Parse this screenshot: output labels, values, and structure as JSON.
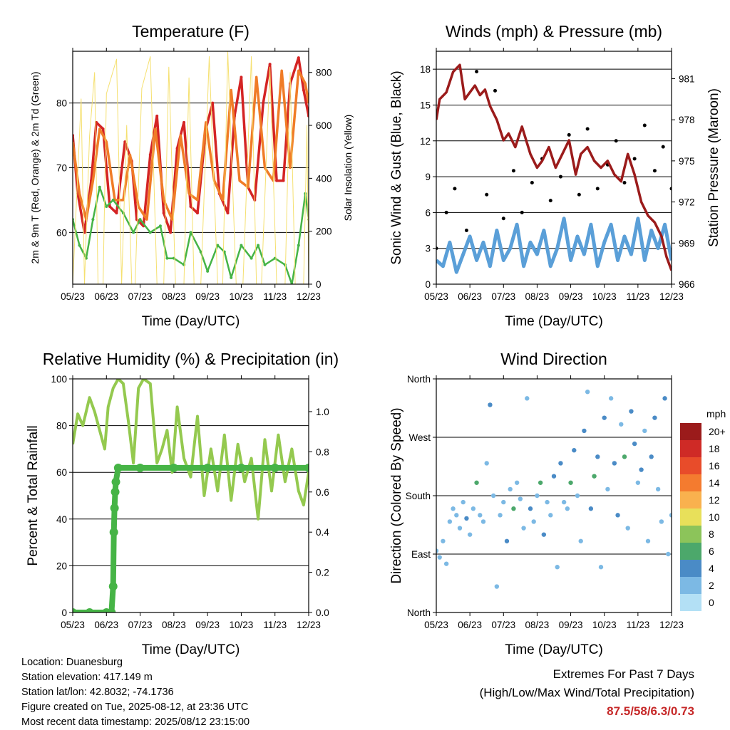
{
  "colors": {
    "temp_2m": "#d42424",
    "temp_9m": "#f07c27",
    "dewpoint": "#46b446",
    "solar": "#f5e070",
    "wind": "#5a9fd8",
    "gust": "#000000",
    "pressure": "#9b1b1b",
    "rh": "#94c94f",
    "precip": "#46b446",
    "extremes": "#c62828"
  },
  "chart_data": [
    {
      "id": "temperature",
      "type": "line",
      "title": "Temperature (F)",
      "xlabel": "Time (Day/UTC)",
      "ylabel": "2m & 9m T (Red, Orange) & 2m Td (Green)",
      "y2label": "Solar Insolation (Yellow)",
      "x_ticks": [
        "05/23",
        "06/23",
        "07/23",
        "08/23",
        "09/23",
        "10/23",
        "11/23",
        "12/23"
      ],
      "xlim": [
        0,
        7
      ],
      "ylim": [
        52,
        88
      ],
      "y_ticks": [
        60,
        70,
        80
      ],
      "y2lim": [
        0,
        880
      ],
      "y2_ticks": [
        0,
        200,
        400,
        600,
        800
      ],
      "series": [
        {
          "name": "2m T",
          "axis": "y",
          "x": [
            0,
            0.15,
            0.35,
            0.55,
            0.7,
            0.9,
            1.1,
            1.3,
            1.55,
            1.75,
            1.9,
            2.1,
            2.3,
            2.5,
            2.7,
            2.9,
            3.1,
            3.3,
            3.5,
            3.7,
            3.95,
            4.15,
            4.35,
            4.6,
            4.8,
            5.0,
            5.2,
            5.4,
            5.65,
            5.85,
            6.05,
            6.25,
            6.45,
            6.7,
            6.85,
            7.0
          ],
          "values": [
            75,
            66,
            60,
            68,
            77,
            76,
            64,
            63,
            74,
            71,
            62,
            61,
            72,
            78,
            63,
            60,
            73,
            77,
            64,
            63,
            76,
            80,
            66,
            63,
            78,
            84,
            67,
            65,
            80,
            86,
            68,
            68,
            83,
            87,
            82,
            78
          ]
        },
        {
          "name": "9m T",
          "axis": "y",
          "x": [
            0,
            0.2,
            0.4,
            0.6,
            0.8,
            1.0,
            1.25,
            1.5,
            1.7,
            1.95,
            2.2,
            2.45,
            2.7,
            2.95,
            3.2,
            3.45,
            3.7,
            3.95,
            4.2,
            4.45,
            4.7,
            4.95,
            5.2,
            5.45,
            5.7,
            5.95,
            6.2,
            6.45,
            6.7,
            6.9,
            7.0
          ],
          "values": [
            74,
            66,
            62,
            68,
            76,
            74,
            65,
            65,
            72,
            64,
            62,
            76,
            65,
            62,
            75,
            66,
            65,
            77,
            68,
            65,
            82,
            68,
            67,
            84,
            70,
            68,
            85,
            70,
            85,
            83,
            80
          ]
        },
        {
          "name": "2m Td",
          "axis": "y",
          "x": [
            0,
            0.2,
            0.4,
            0.6,
            0.8,
            1.0,
            1.2,
            1.5,
            1.8,
            2.0,
            2.3,
            2.6,
            2.8,
            3.0,
            3.3,
            3.5,
            3.8,
            4.0,
            4.3,
            4.5,
            4.7,
            5.0,
            5.3,
            5.5,
            5.7,
            6.0,
            6.3,
            6.5,
            6.7,
            6.9,
            7.0
          ],
          "values": [
            62,
            58,
            56,
            62,
            67,
            64,
            65,
            63,
            60,
            62,
            60,
            61,
            56,
            56,
            55,
            60,
            57,
            54,
            58,
            57,
            53,
            58,
            56,
            58,
            55,
            56,
            55,
            52,
            58,
            66,
            62
          ]
        },
        {
          "name": "Solar Insolation",
          "axis": "y2",
          "x": [
            0,
            0.25,
            0.35,
            0.5,
            0.65,
            0.75,
            0.9,
            1.0,
            1.3,
            1.45,
            1.6,
            1.75,
            1.85,
            2.05,
            2.3,
            2.5,
            2.7,
            2.85,
            3.05,
            3.3,
            3.45,
            3.6,
            3.8,
            4.05,
            4.3,
            4.45,
            4.6,
            4.85,
            5.05,
            5.3,
            5.45,
            5.6,
            5.85,
            6.05,
            6.3,
            6.45,
            6.6,
            6.85,
            6.95,
            7.0
          ],
          "values": [
            0,
            700,
            0,
            560,
            800,
            0,
            0,
            720,
            850,
            0,
            600,
            0,
            0,
            740,
            860,
            0,
            0,
            820,
            0,
            0,
            780,
            0,
            0,
            860,
            0,
            0,
            880,
            0,
            0,
            860,
            0,
            0,
            820,
            0,
            0,
            800,
            0,
            0,
            600,
            0
          ]
        }
      ]
    },
    {
      "id": "winds",
      "type": "line",
      "title": "Winds (mph) & Pressure (mb)",
      "xlabel": "Time (Day/UTC)",
      "ylabel": "Sonic Wind & Gust (Blue, Black)",
      "y2label": "Station Pressure (Maroon)",
      "x_ticks": [
        "05/23",
        "06/23",
        "07/23",
        "08/23",
        "09/23",
        "10/23",
        "11/23",
        "12/23"
      ],
      "xlim": [
        0,
        7
      ],
      "ylim": [
        0,
        19.5
      ],
      "y_ticks": [
        0,
        3,
        6,
        9,
        12,
        15,
        18
      ],
      "y2lim": [
        966,
        983
      ],
      "y2_ticks": [
        966,
        969,
        972,
        975,
        978,
        981
      ],
      "series": [
        {
          "name": "Sonic Wind",
          "axis": "y",
          "x": [
            0,
            0.2,
            0.4,
            0.6,
            0.8,
            1.0,
            1.2,
            1.4,
            1.6,
            1.8,
            2.0,
            2.2,
            2.4,
            2.6,
            2.8,
            3.0,
            3.2,
            3.4,
            3.6,
            3.8,
            4.0,
            4.2,
            4.4,
            4.6,
            4.8,
            5.0,
            5.2,
            5.4,
            5.6,
            5.8,
            6.0,
            6.2,
            6.4,
            6.6,
            6.8,
            7.0
          ],
          "values": [
            2.0,
            1.5,
            3.5,
            1.0,
            2.5,
            4.0,
            2.0,
            3.5,
            1.5,
            4.5,
            2.0,
            3.0,
            5.0,
            1.5,
            3.5,
            2.5,
            4.5,
            1.5,
            3.0,
            5.5,
            2.0,
            4.0,
            2.5,
            5.0,
            1.5,
            3.5,
            5.0,
            2.0,
            4.0,
            2.5,
            5.5,
            2.0,
            4.5,
            3.0,
            5.0,
            2.0
          ]
        },
        {
          "name": "Gust",
          "axis": "y",
          "x": [
            0,
            0.3,
            0.55,
            0.9,
            1.2,
            1.5,
            1.75,
            2.0,
            2.3,
            2.55,
            2.85,
            3.15,
            3.4,
            3.7,
            3.95,
            4.25,
            4.5,
            4.8,
            5.1,
            5.35,
            5.6,
            5.9,
            6.2,
            6.5,
            6.75,
            7.0
          ],
          "values": [
            3.0,
            6.0,
            8.0,
            4.5,
            17.8,
            7.5,
            16.2,
            5.5,
            9.5,
            6.0,
            8.5,
            10.5,
            7.0,
            9.0,
            12.5,
            7.5,
            13.0,
            8.0,
            10.0,
            12.0,
            8.5,
            10.5,
            13.3,
            9.5,
            11.5,
            8.0
          ]
        },
        {
          "name": "Station Pressure",
          "axis": "y2",
          "x": [
            0,
            0.1,
            0.3,
            0.5,
            0.7,
            0.85,
            1.0,
            1.15,
            1.3,
            1.45,
            1.6,
            1.8,
            2.0,
            2.15,
            2.35,
            2.55,
            2.8,
            3.0,
            3.15,
            3.35,
            3.55,
            3.75,
            3.95,
            4.15,
            4.3,
            4.5,
            4.7,
            4.9,
            5.1,
            5.3,
            5.5,
            5.7,
            5.9,
            6.1,
            6.3,
            6.5,
            6.7,
            6.85,
            7.0
          ],
          "values": [
            978.0,
            979.5,
            980.0,
            981.5,
            982.0,
            979.5,
            980.0,
            980.5,
            979.8,
            980.2,
            979.0,
            978.0,
            976.5,
            977.0,
            976.0,
            977.5,
            975.5,
            974.5,
            975.0,
            976.0,
            974.5,
            975.5,
            976.5,
            974.0,
            975.5,
            976.0,
            975.0,
            974.5,
            975.0,
            974.0,
            973.5,
            975.5,
            974.0,
            972.0,
            971.0,
            970.5,
            969.5,
            968.0,
            967.0
          ]
        }
      ]
    },
    {
      "id": "humidity",
      "type": "line",
      "title": "Relative Humidity (%) & Precipitation (in)",
      "xlabel": "Time (Day/UTC)",
      "ylabel": "Percent & Total Rainfall",
      "x_ticks": [
        "05/23",
        "06/23",
        "07/23",
        "08/23",
        "09/23",
        "10/23",
        "11/23",
        "12/23"
      ],
      "xlim": [
        0,
        7
      ],
      "ylim": [
        0,
        100
      ],
      "y_ticks": [
        0,
        20,
        40,
        60,
        80,
        100
      ],
      "y2lim": [
        0,
        1.163
      ],
      "y2_ticks": [
        "0.0",
        "0.2",
        "0.4",
        "0.6",
        "0.8",
        "1.0"
      ],
      "series": [
        {
          "name": "Relative Humidity",
          "axis": "y",
          "x": [
            0,
            0.15,
            0.3,
            0.5,
            0.65,
            0.8,
            0.95,
            1.05,
            1.2,
            1.35,
            1.5,
            1.65,
            1.8,
            1.95,
            2.1,
            2.3,
            2.5,
            2.65,
            2.8,
            2.95,
            3.1,
            3.3,
            3.5,
            3.7,
            3.9,
            4.1,
            4.3,
            4.5,
            4.7,
            4.9,
            5.1,
            5.3,
            5.5,
            5.7,
            5.9,
            6.1,
            6.3,
            6.5,
            6.7,
            6.85,
            7.0
          ],
          "values": [
            72,
            85,
            80,
            92,
            86,
            78,
            70,
            88,
            96,
            100,
            98,
            82,
            64,
            96,
            100,
            98,
            64,
            70,
            78,
            60,
            88,
            66,
            58,
            84,
            50,
            70,
            52,
            76,
            48,
            72,
            56,
            66,
            40,
            74,
            52,
            76,
            56,
            70,
            52,
            46,
            60
          ]
        },
        {
          "name": "Total Precipitation",
          "axis": "y2",
          "x": [
            0,
            0.5,
            1.0,
            1.15,
            1.2,
            1.22,
            1.24,
            1.26,
            1.28,
            1.35,
            2.0,
            3.0,
            4.0,
            5.0,
            6.0,
            7.0
          ],
          "values": [
            0,
            0,
            0,
            0,
            0.13,
            0.4,
            0.52,
            0.6,
            0.65,
            0.72,
            0.72,
            0.72,
            0.72,
            0.72,
            0.72,
            0.72
          ]
        }
      ]
    },
    {
      "id": "wind_direction",
      "type": "scatter",
      "title": "Wind Direction",
      "xlabel": "Time (Day/UTC)",
      "ylabel": "Direction (Colored By Speed)",
      "x_ticks": [
        "05/23",
        "06/23",
        "07/23",
        "08/23",
        "09/23",
        "10/23",
        "11/23",
        "12/23"
      ],
      "xlim": [
        0,
        7
      ],
      "ylim": [
        0,
        360
      ],
      "y_ticks": [
        "North",
        "East",
        "South",
        "West",
        "North"
      ],
      "y_tick_values": [
        0,
        90,
        180,
        270,
        360
      ],
      "colorbar": {
        "unit": "mph",
        "labels": [
          "0",
          "2",
          "4",
          "6",
          "8",
          "10",
          "12",
          "14",
          "16",
          "18",
          "20+"
        ],
        "colors": [
          "#b3e0f5",
          "#7cb9e4",
          "#4a8bc6",
          "#4ca86b",
          "#8cc45a",
          "#e8e05a",
          "#f9b14e",
          "#f47b2f",
          "#e84c2a",
          "#cf2a26",
          "#9b1b1b"
        ]
      },
      "series": [
        {
          "name": "Direction",
          "x": [
            0,
            0.1,
            0.2,
            0.3,
            0.4,
            0.5,
            0.6,
            0.7,
            0.8,
            0.9,
            1.0,
            1.1,
            1.2,
            1.3,
            1.4,
            1.5,
            1.6,
            1.7,
            1.8,
            1.9,
            2.0,
            2.1,
            2.2,
            2.3,
            2.4,
            2.5,
            2.6,
            2.7,
            2.8,
            2.9,
            3.0,
            3.1,
            3.2,
            3.3,
            3.4,
            3.5,
            3.6,
            3.7,
            3.8,
            3.9,
            4.0,
            4.1,
            4.2,
            4.3,
            4.4,
            4.5,
            4.6,
            4.7,
            4.8,
            4.9,
            5.0,
            5.1,
            5.2,
            5.3,
            5.4,
            5.5,
            5.6,
            5.7,
            5.8,
            5.9,
            6.0,
            6.1,
            6.2,
            6.3,
            6.4,
            6.5,
            6.6,
            6.7,
            6.8,
            6.9,
            7.0
          ],
          "values": [
            95,
            85,
            110,
            75,
            140,
            160,
            150,
            130,
            170,
            145,
            120,
            160,
            200,
            150,
            140,
            230,
            320,
            180,
            40,
            150,
            170,
            110,
            190,
            160,
            200,
            175,
            130,
            330,
            160,
            140,
            180,
            200,
            120,
            170,
            150,
            210,
            70,
            230,
            170,
            160,
            200,
            250,
            180,
            110,
            280,
            340,
            160,
            210,
            240,
            70,
            300,
            190,
            330,
            230,
            150,
            290,
            240,
            130,
            310,
            260,
            200,
            220,
            280,
            110,
            240,
            300,
            190,
            140,
            330,
            90,
            150
          ],
          "speed": [
            1,
            1,
            2,
            1,
            2,
            2,
            1,
            2,
            2,
            3,
            2,
            2,
            6,
            2,
            1,
            2,
            3,
            2,
            1,
            2,
            2,
            3,
            2,
            6,
            2,
            2,
            1,
            2,
            3,
            2,
            2,
            6,
            3,
            2,
            2,
            3,
            2,
            3,
            2,
            2,
            6,
            3,
            2,
            2,
            3,
            2,
            3,
            6,
            4,
            2,
            3,
            2,
            2,
            4,
            3,
            2,
            6,
            2,
            3,
            4,
            2,
            3,
            2,
            2,
            4,
            3,
            2,
            2,
            3,
            2,
            2
          ]
        }
      ]
    }
  ],
  "info": {
    "location": "Location: Duanesburg",
    "elevation": "Station elevation: 417.149 m",
    "latlon": "Station lat/lon: 42.8032; -74.1736",
    "created": "Figure created on Tue, 2025-08-12, at 23:36 UTC",
    "timestamp": "Most recent data timestamp: 2025/08/12 23:15:00"
  },
  "extremes": {
    "title": "Extremes For Past 7 Days",
    "subtitle": "(High/Low/Max Wind/Total Precipitation)",
    "values": "87.5/58/6.3/0.73"
  }
}
